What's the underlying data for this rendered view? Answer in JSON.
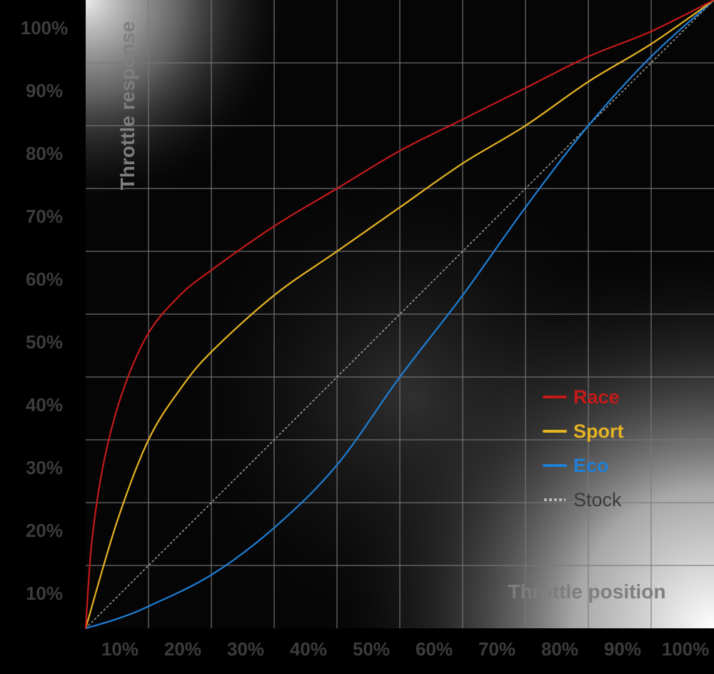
{
  "chart_data": {
    "type": "line",
    "xlabel": "Throttle position",
    "ylabel": "Throttle response",
    "xlim": [
      0,
      100
    ],
    "ylim": [
      0,
      100
    ],
    "x_ticks": [
      "10%",
      "20%",
      "30%",
      "40%",
      "50%",
      "60%",
      "70%",
      "80%",
      "90%",
      "100%"
    ],
    "y_ticks": [
      "10%",
      "20%",
      "30%",
      "40%",
      "50%",
      "60%",
      "70%",
      "80%",
      "90%",
      "100%"
    ],
    "grid": true,
    "legend_position": "right",
    "series": [
      {
        "name": "Race",
        "color": "#c41a1a",
        "style": "solid",
        "x": [
          0,
          1,
          3,
          6,
          10,
          15,
          20,
          30,
          40,
          50,
          60,
          70,
          80,
          90,
          100
        ],
        "y": [
          0,
          14,
          27,
          38,
          47,
          53,
          57,
          64,
          70,
          76,
          81,
          86,
          91,
          95,
          100
        ]
      },
      {
        "name": "Sport",
        "color": "#e6b422",
        "style": "solid",
        "x": [
          0,
          5,
          10,
          15,
          20,
          30,
          40,
          50,
          60,
          70,
          80,
          90,
          100
        ],
        "y": [
          0,
          17,
          30,
          38,
          44,
          53,
          60,
          67,
          74,
          80,
          87,
          93,
          100
        ]
      },
      {
        "name": "Eco",
        "color": "#1e7fd6",
        "style": "solid",
        "x": [
          0,
          5,
          10,
          20,
          30,
          40,
          50,
          60,
          70,
          80,
          90,
          100
        ],
        "y": [
          0,
          1.5,
          3.5,
          8.5,
          16,
          26,
          40,
          53,
          67,
          80,
          91,
          100
        ]
      },
      {
        "name": "Stock",
        "color": "#9a9a9a",
        "style": "dotted",
        "x": [
          0,
          100
        ],
        "y": [
          0,
          100
        ]
      }
    ]
  }
}
